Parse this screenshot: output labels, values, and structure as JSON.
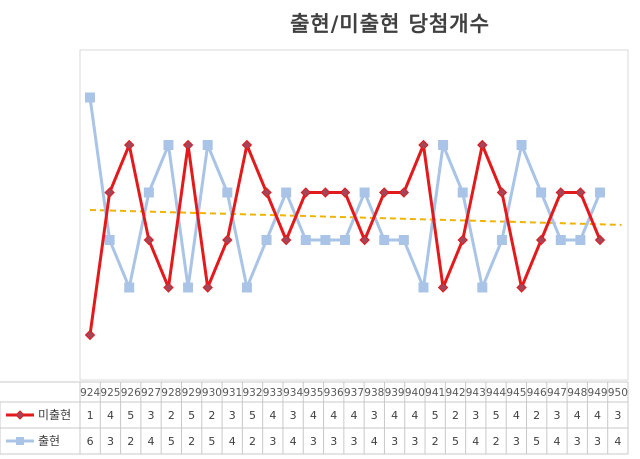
{
  "chart_data": {
    "type": "line",
    "title": "출현/미출현 당첨개수",
    "categories": [
      "924",
      "925",
      "926",
      "927",
      "928",
      "929",
      "930",
      "931",
      "932",
      "933",
      "934",
      "935",
      "936",
      "937",
      "938",
      "939",
      "940",
      "941",
      "942",
      "943",
      "944",
      "945",
      "946",
      "947",
      "948",
      "949",
      "950"
    ],
    "series": [
      {
        "name": "미출현",
        "color": "#e31a1c",
        "marker": "diamond",
        "values": [
          1,
          4,
          5,
          3,
          2,
          5,
          2,
          3,
          5,
          4,
          3,
          4,
          4,
          4,
          3,
          4,
          4,
          5,
          2,
          3,
          5,
          4,
          2,
          3,
          4,
          4,
          3
        ]
      },
      {
        "name": "출현",
        "color": "#a9c4e6",
        "marker": "square",
        "values": [
          6,
          3,
          2,
          4,
          5,
          2,
          5,
          4,
          2,
          3,
          4,
          3,
          3,
          3,
          4,
          3,
          3,
          2,
          5,
          4,
          2,
          3,
          5,
          4,
          3,
          3,
          4
        ]
      }
    ],
    "trendline": {
      "series": "출현",
      "type": "linear",
      "color": "#f0b400",
      "style": "dashed"
    },
    "data_table": true,
    "legend": "data-table",
    "grid": false
  }
}
